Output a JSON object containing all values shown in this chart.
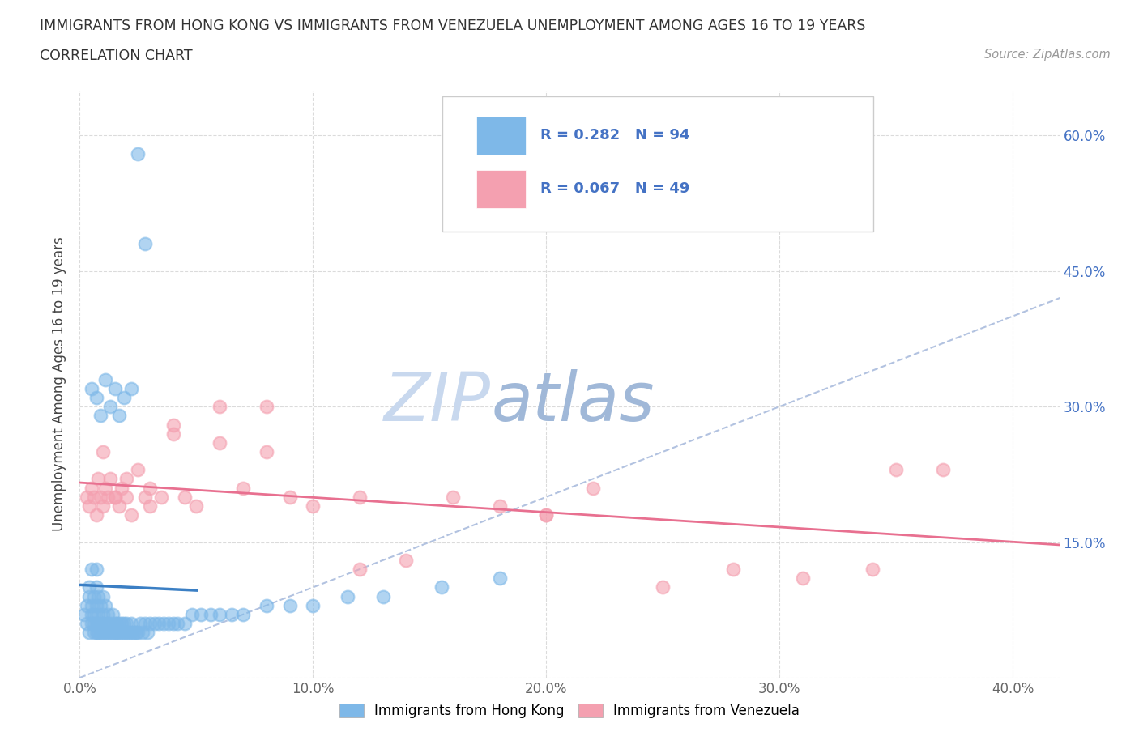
{
  "title_line1": "IMMIGRANTS FROM HONG KONG VS IMMIGRANTS FROM VENEZUELA UNEMPLOYMENT AMONG AGES 16 TO 19 YEARS",
  "title_line2": "CORRELATION CHART",
  "source_text": "Source: ZipAtlas.com",
  "ylabel": "Unemployment Among Ages 16 to 19 years",
  "xlim": [
    0.0,
    0.42
  ],
  "ylim": [
    0.0,
    0.65
  ],
  "xticks": [
    0.0,
    0.1,
    0.2,
    0.3,
    0.4
  ],
  "yticks": [
    0.0,
    0.15,
    0.3,
    0.45,
    0.6
  ],
  "xticklabels": [
    "0.0%",
    "10.0%",
    "20.0%",
    "30.0%",
    "40.0%"
  ],
  "yticklabels_right": [
    "",
    "15.0%",
    "30.0%",
    "45.0%",
    "60.0%"
  ],
  "legend_bottom": [
    "Immigrants from Hong Kong",
    "Immigrants from Venezuela"
  ],
  "hk_R": 0.282,
  "hk_N": 94,
  "ven_R": 0.067,
  "ven_N": 49,
  "hk_color": "#7EB8E8",
  "ven_color": "#F4A0B0",
  "hk_line_color": "#3B7FC4",
  "ven_line_color": "#E87090",
  "diag_line_color": "#AABCDD",
  "watermark_zip_color": "#C8D8EE",
  "watermark_atlas_color": "#A0B8D8",
  "hk_x": [
    0.002,
    0.003,
    0.003,
    0.004,
    0.004,
    0.004,
    0.005,
    0.005,
    0.005,
    0.005,
    0.006,
    0.006,
    0.006,
    0.006,
    0.007,
    0.007,
    0.007,
    0.007,
    0.007,
    0.008,
    0.008,
    0.008,
    0.008,
    0.009,
    0.009,
    0.009,
    0.01,
    0.01,
    0.01,
    0.01,
    0.011,
    0.011,
    0.011,
    0.012,
    0.012,
    0.012,
    0.013,
    0.013,
    0.014,
    0.014,
    0.015,
    0.015,
    0.016,
    0.016,
    0.017,
    0.017,
    0.018,
    0.018,
    0.019,
    0.019,
    0.02,
    0.02,
    0.021,
    0.022,
    0.022,
    0.023,
    0.024,
    0.025,
    0.026,
    0.027,
    0.028,
    0.029,
    0.03,
    0.032,
    0.034,
    0.036,
    0.038,
    0.04,
    0.042,
    0.045,
    0.048,
    0.052,
    0.056,
    0.06,
    0.065,
    0.07,
    0.08,
    0.09,
    0.1,
    0.115,
    0.13,
    0.155,
    0.18,
    0.005,
    0.007,
    0.009,
    0.011,
    0.013,
    0.015,
    0.017,
    0.019,
    0.022,
    0.025,
    0.028
  ],
  "hk_y": [
    0.07,
    0.06,
    0.08,
    0.05,
    0.09,
    0.1,
    0.06,
    0.07,
    0.08,
    0.12,
    0.05,
    0.06,
    0.07,
    0.09,
    0.05,
    0.06,
    0.08,
    0.1,
    0.12,
    0.05,
    0.06,
    0.07,
    0.09,
    0.05,
    0.06,
    0.08,
    0.05,
    0.06,
    0.07,
    0.09,
    0.05,
    0.06,
    0.08,
    0.05,
    0.06,
    0.07,
    0.05,
    0.06,
    0.05,
    0.07,
    0.05,
    0.06,
    0.05,
    0.06,
    0.05,
    0.06,
    0.05,
    0.06,
    0.05,
    0.06,
    0.05,
    0.06,
    0.05,
    0.05,
    0.06,
    0.05,
    0.05,
    0.05,
    0.06,
    0.05,
    0.06,
    0.05,
    0.06,
    0.06,
    0.06,
    0.06,
    0.06,
    0.06,
    0.06,
    0.06,
    0.07,
    0.07,
    0.07,
    0.07,
    0.07,
    0.07,
    0.08,
    0.08,
    0.08,
    0.09,
    0.09,
    0.1,
    0.11,
    0.32,
    0.31,
    0.29,
    0.33,
    0.3,
    0.32,
    0.29,
    0.31,
    0.32,
    0.58,
    0.48
  ],
  "ven_x": [
    0.003,
    0.004,
    0.005,
    0.006,
    0.007,
    0.008,
    0.009,
    0.01,
    0.011,
    0.012,
    0.013,
    0.015,
    0.017,
    0.018,
    0.02,
    0.022,
    0.025,
    0.028,
    0.03,
    0.035,
    0.04,
    0.045,
    0.05,
    0.06,
    0.07,
    0.08,
    0.09,
    0.1,
    0.12,
    0.14,
    0.16,
    0.18,
    0.2,
    0.22,
    0.25,
    0.28,
    0.31,
    0.34,
    0.37,
    0.01,
    0.015,
    0.02,
    0.03,
    0.04,
    0.06,
    0.08,
    0.12,
    0.2,
    0.35
  ],
  "ven_y": [
    0.2,
    0.19,
    0.21,
    0.2,
    0.18,
    0.22,
    0.2,
    0.19,
    0.21,
    0.2,
    0.22,
    0.2,
    0.19,
    0.21,
    0.2,
    0.18,
    0.23,
    0.2,
    0.21,
    0.2,
    0.28,
    0.2,
    0.19,
    0.3,
    0.21,
    0.25,
    0.2,
    0.19,
    0.12,
    0.13,
    0.2,
    0.19,
    0.18,
    0.21,
    0.1,
    0.12,
    0.11,
    0.12,
    0.23,
    0.25,
    0.2,
    0.22,
    0.19,
    0.27,
    0.26,
    0.3,
    0.2,
    0.18,
    0.23
  ]
}
